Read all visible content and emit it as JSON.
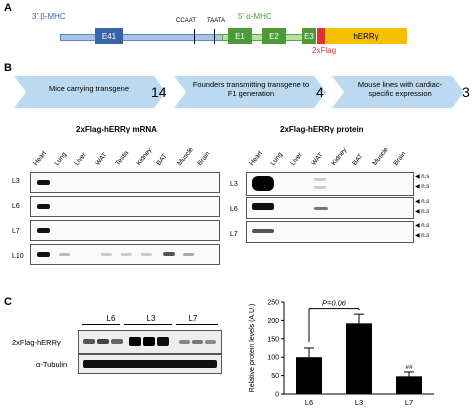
{
  "panels": {
    "A": "A",
    "B": "B",
    "C": "C"
  },
  "construct": {
    "promoter_beta": "3' β-MHC",
    "promoter_alpha": "5' α-MHC",
    "motif_ccaat": "CCAAT",
    "motif_taata": "TAATA",
    "exons": [
      "E41",
      "E1",
      "E2",
      "E3"
    ],
    "gene": "hERRγ",
    "tag": "2xFlag",
    "colors": {
      "exon": "#3a64a8",
      "gene": "#f5c000",
      "tag": "#e03030",
      "beta": "#5a87c8",
      "alpha": "#5aaa45"
    }
  },
  "workflow": {
    "steps": [
      "Mice carrying transgene",
      "Founders transmitting transgene to F1 generation",
      "Mouse lines with cardiac-specific expression"
    ],
    "counts": [
      "14",
      "4",
      "3"
    ]
  },
  "mrna_blot": {
    "title": "2xFlag-hERRγ mRNA",
    "lanes": [
      "Heart",
      "Lung",
      "Liver",
      "WAT",
      "Testis",
      "Kidney",
      "BAT",
      "Muscle",
      "Brain"
    ],
    "rows": [
      "L3",
      "L6",
      "L7",
      "L10"
    ]
  },
  "protein_blot": {
    "title": "2xFlag-hERRγ protein",
    "lanes": [
      "Heart",
      "Lung",
      "Liver",
      "WAT",
      "Kidney",
      "BAT",
      "Muscle",
      "Brain"
    ],
    "rows": [
      "L3",
      "L6",
      "L7"
    ],
    "ns_label": "n.s"
  },
  "western": {
    "groups": [
      "L6",
      "L3",
      "L7"
    ],
    "rows": [
      "2xFlag-hERRγ",
      "α-Tubulin"
    ]
  },
  "chart_data": {
    "type": "bar",
    "categories": [
      "L6",
      "L3",
      "L7"
    ],
    "values": [
      100,
      192,
      48
    ],
    "errors": [
      25,
      25,
      12
    ],
    "ylabel": "Relative protein levels (A.U.)",
    "ylim": [
      0,
      250
    ],
    "yticks": [
      0,
      50,
      100,
      150,
      200,
      250
    ],
    "annotation": "P=0.06",
    "marker": "##",
    "bar_color": "#000000"
  }
}
